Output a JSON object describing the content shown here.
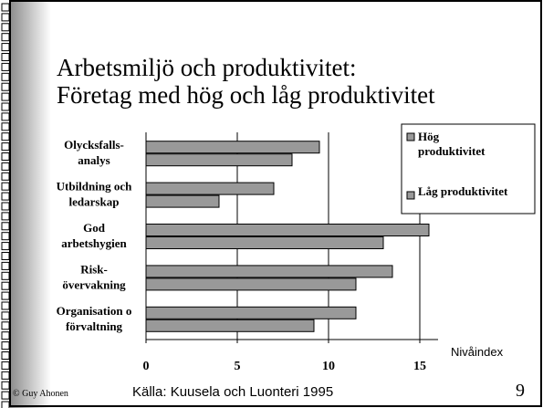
{
  "slide": {
    "title_lines": [
      "Arbetsmiljö och produktivitet:",
      "Företag med hög och låg produktivitet"
    ],
    "source": "Källa: Kuusela och Luonteri 1995",
    "author": "© Guy Ahonen",
    "page": "9"
  },
  "chart_data": {
    "type": "bar",
    "orientation": "horizontal",
    "categories": [
      "Olycksfalls-\nanalys",
      "Utbildning och\nledarskap",
      "God\narbetshygien",
      "Risk-\növervakning",
      "Organisation o\nförvaltning"
    ],
    "series": [
      {
        "name": "Hög\nproduktivitet",
        "color": "#999999",
        "values": [
          9.5,
          7,
          15.5,
          13.5,
          11.5
        ]
      },
      {
        "name": "Låg produktivitet",
        "color": "#999999",
        "values": [
          8,
          4,
          13,
          11.5,
          9.2
        ]
      }
    ],
    "x_label": "Nivåindex",
    "xlim": [
      0,
      16
    ],
    "xticks": [
      0,
      5,
      10,
      15
    ],
    "grid": true
  }
}
